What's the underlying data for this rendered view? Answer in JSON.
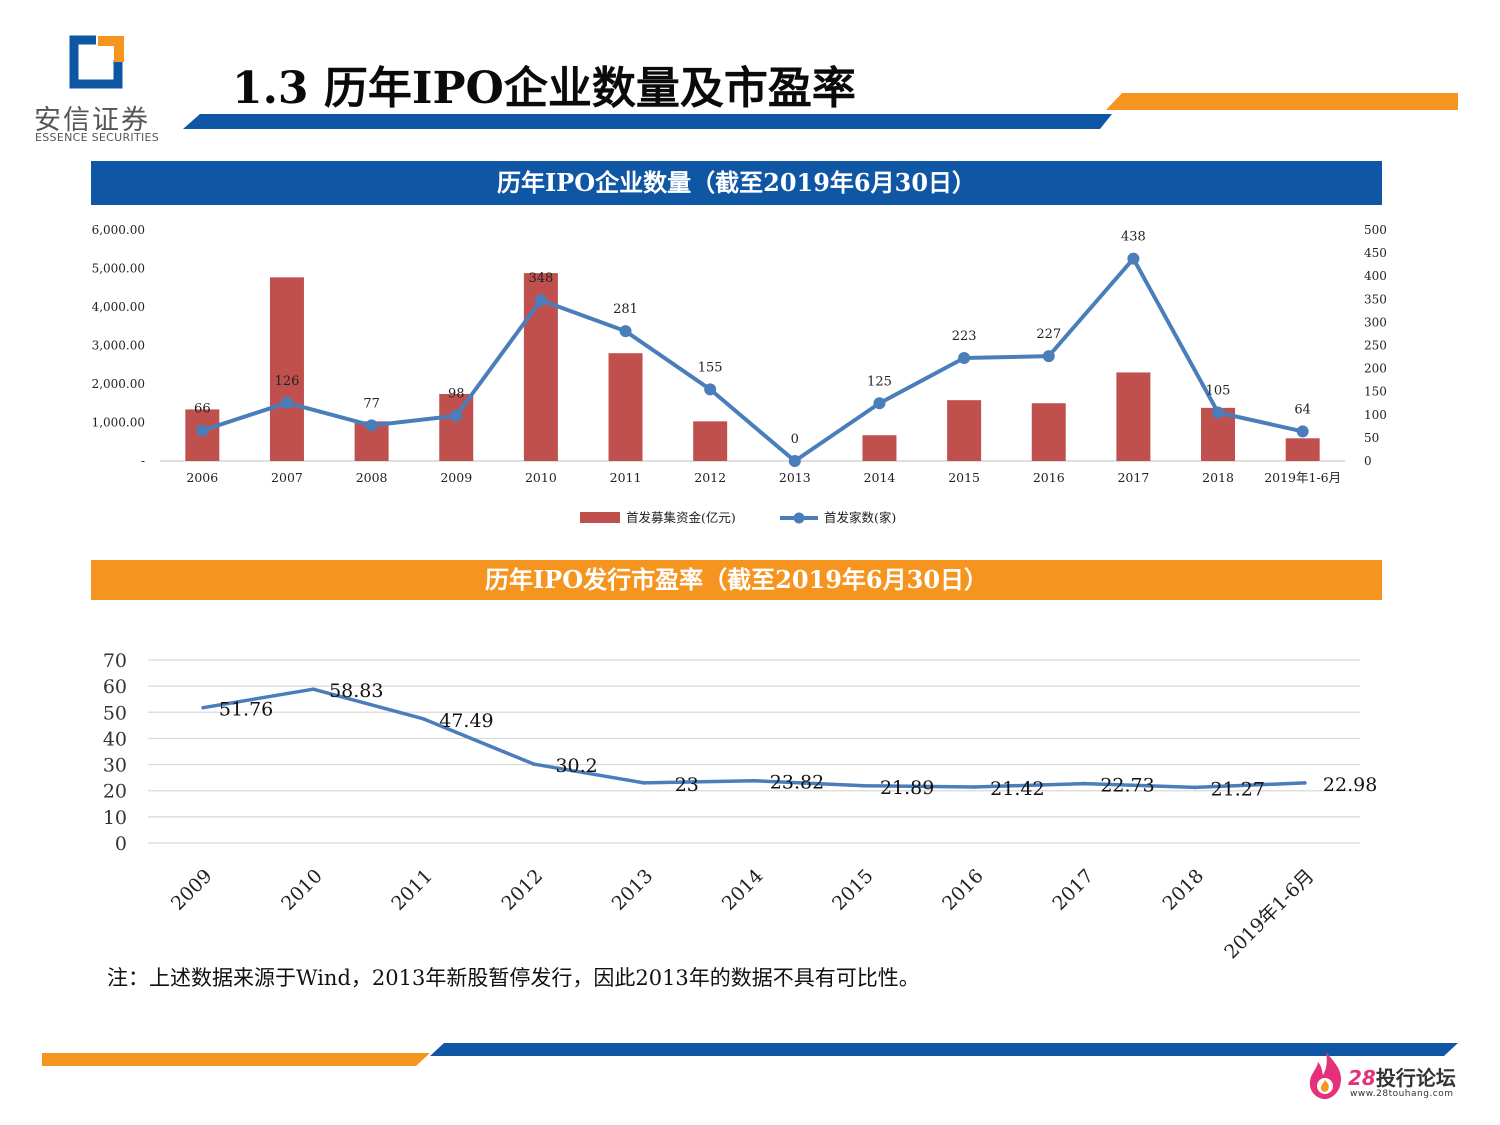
{
  "logo": {
    "cn": "安信证券",
    "en": "ESSENCE SECURITIES"
  },
  "page_title": "1.3 历年IPO企业数量及市盈率",
  "banners": {
    "chart1": "历年IPO企业数量（截至2019年6月30日）",
    "chart2": "历年IPO发行市盈率（截至2019年6月30日）"
  },
  "colors": {
    "blue": "#0f56a5",
    "orange": "#f5951f",
    "bar": "#c0504d",
    "line": "#4a7ebb"
  },
  "chart_data": [
    {
      "type": "bar+line",
      "title": "历年IPO企业数量（截至2019年6月30日）",
      "categories": [
        "2006",
        "2007",
        "2008",
        "2009",
        "2010",
        "2011",
        "2012",
        "2013",
        "2014",
        "2015",
        "2016",
        "2017",
        "2018",
        "2019年1-6月"
      ],
      "series": [
        {
          "name": "首发募集资金(亿元)",
          "type": "bar",
          "axis": "left",
          "values": [
            1340,
            4770,
            1030,
            1740,
            4880,
            2800,
            1030,
            0,
            670,
            1580,
            1500,
            2300,
            1380,
            590
          ]
        },
        {
          "name": "首发家数(家)",
          "type": "line",
          "axis": "right",
          "values": [
            66,
            126,
            77,
            98,
            348,
            281,
            155,
            0,
            125,
            223,
            227,
            438,
            105,
            64
          ],
          "labels": [
            "66",
            "126",
            "77",
            "98",
            "348",
            "281",
            "155",
            "0",
            "125",
            "223",
            "227",
            "438",
            "105",
            "64"
          ]
        }
      ],
      "y_left": {
        "range": [
          0,
          6000
        ],
        "ticks": [
          "-",
          "1,000.00",
          "2,000.00",
          "3,000.00",
          "4,000.00",
          "5,000.00",
          "6,000.00"
        ]
      },
      "y_right": {
        "range": [
          0,
          500
        ],
        "ticks": [
          "0",
          "50",
          "100",
          "150",
          "200",
          "250",
          "300",
          "350",
          "400",
          "450",
          "500"
        ]
      },
      "legend": [
        "首发募集资金(亿元)",
        "首发家数(家)"
      ],
      "legend_position": "bottom"
    },
    {
      "type": "line",
      "title": "历年IPO发行市盈率（截至2019年6月30日）",
      "categories": [
        "2009",
        "2010",
        "2011",
        "2012",
        "2013",
        "2014",
        "2015",
        "2016",
        "2017",
        "2018",
        "2019年1-6月"
      ],
      "values": [
        51.76,
        58.83,
        47.49,
        30.2,
        23,
        23.82,
        21.89,
        21.42,
        22.73,
        21.27,
        22.98
      ],
      "labels": [
        "51.76",
        "58.83",
        "47.49",
        "30.2",
        "23",
        "23.82",
        "21.89",
        "21.42",
        "22.73",
        "21.27",
        "22.98"
      ],
      "y": {
        "range": [
          0,
          70
        ],
        "ticks": [
          "0",
          "10",
          "20",
          "30",
          "40",
          "50",
          "60",
          "70"
        ]
      },
      "grid": true
    }
  ],
  "note": "注：上述数据来源于Wind，2013年新股暂停发行，因此2013年的数据不具有可比性。",
  "watermark": {
    "num": "28",
    "text": "投行论坛",
    "url": "www.28touhang.com"
  }
}
